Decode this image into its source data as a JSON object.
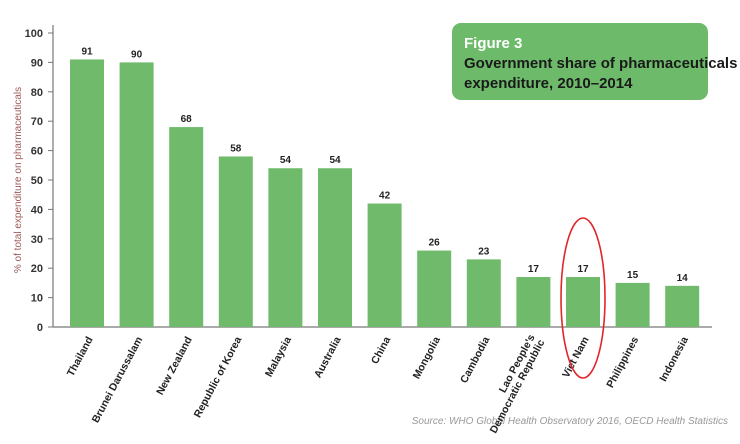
{
  "chart_data": {
    "type": "bar",
    "title_label": "Figure 3",
    "title": [
      "Government share of pharmaceuticals",
      "expenditure, 2010–2014"
    ],
    "ylabel": "% of total expenditure on pharmaceuticals",
    "xlabel": "",
    "ylim": [
      0,
      100
    ],
    "yticks": [
      0,
      10,
      20,
      30,
      40,
      50,
      60,
      70,
      80,
      90,
      100
    ],
    "categories": [
      "Thailand",
      "Brunei Darussalam",
      "New Zealand",
      "Republic of Korea",
      "Malaysia",
      "Australia",
      "China",
      "Mongolia",
      "Cambodia",
      "Lao People's Democratic Republic",
      "Viet Nam",
      "Philippines",
      "Indonesia"
    ],
    "category_lines": [
      [
        "Thailand"
      ],
      [
        "Brunei Darussalam"
      ],
      [
        "New Zealand"
      ],
      [
        "Republic of Korea"
      ],
      [
        "Malaysia"
      ],
      [
        "Australia"
      ],
      [
        "China"
      ],
      [
        "Mongolia"
      ],
      [
        "Cambodia"
      ],
      [
        "Lao People's",
        "Democratic Republic"
      ],
      [
        "Viet Nam"
      ],
      [
        "Philippines"
      ],
      [
        "Indonesia"
      ]
    ],
    "values": [
      91,
      90,
      68,
      58,
      54,
      54,
      42,
      26,
      23,
      17,
      17,
      15,
      14
    ],
    "highlight": "Viet Nam",
    "grid": false,
    "source": "Source: WHO Global Health Observatory 2016, OECD Health Statistics",
    "colors": {
      "bar": "#6fbb6b",
      "box": "#6dbb6a",
      "highlight": "#e0262b",
      "ylabel": "#a05a5a"
    }
  }
}
